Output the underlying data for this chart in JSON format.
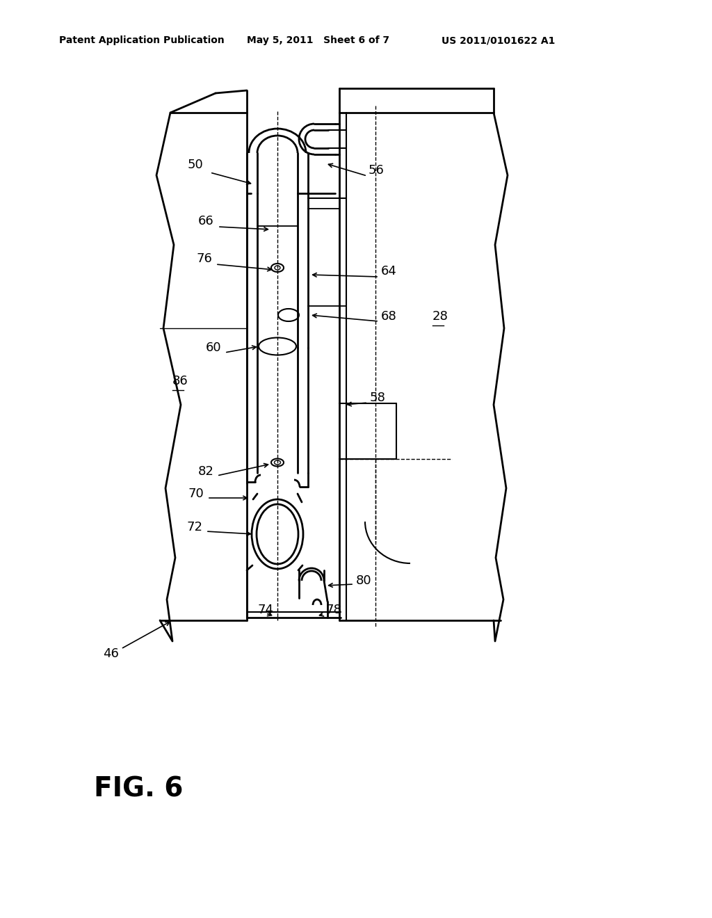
{
  "header_left": "Patent Application Publication",
  "header_mid": "May 5, 2011   Sheet 6 of 7",
  "header_right": "US 2011/0101622 A1",
  "fig_label": "FIG. 6",
  "bg_color": "#ffffff",
  "lc": "#000000"
}
